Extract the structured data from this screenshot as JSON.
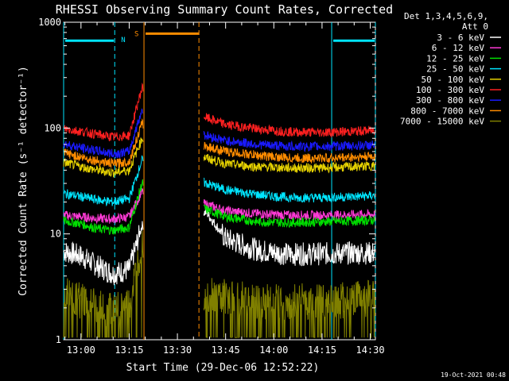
{
  "chart_data": {
    "type": "line",
    "title": "RHESSI Observing Summary Count Rates, Corrected",
    "xlabel": "Start Time (29-Dec-06 12:52:22)",
    "ylabel": "Corrected Count Rate (s⁻¹ detector⁻¹)",
    "yscale": "log",
    "ylim": [
      1,
      1000
    ],
    "xlim_minutes": [
      -5.4,
      91.6
    ],
    "x_ticks": [
      {
        "label": "13:00",
        "minute": 0
      },
      {
        "label": "13:15",
        "minute": 15
      },
      {
        "label": "13:30",
        "minute": 30
      },
      {
        "label": "13:45",
        "minute": 45
      },
      {
        "label": "14:00",
        "minute": 60
      },
      {
        "label": "14:15",
        "minute": 75
      },
      {
        "label": "14:30",
        "minute": 90
      }
    ],
    "y_ticks": [
      {
        "label": "1",
        "value": 1
      },
      {
        "label": "10",
        "value": 10
      },
      {
        "label": "100",
        "value": 100
      },
      {
        "label": "1000",
        "value": 1000
      }
    ],
    "legend_header": [
      "Det 1,3,4,5,6,9,",
      "Att 0"
    ],
    "legend_position": "right",
    "timestamp": "19-Oct-2021 00:48",
    "markers": [
      {
        "label": "N",
        "color": "#00e5ff"
      },
      {
        "label": "S",
        "color": "#ff8c00"
      }
    ],
    "intervals": {
      "night": [
        [
          -5.4,
          10.5
        ],
        [
          78.0,
          91.6
        ]
      ],
      "saa": [
        [
          19.6,
          36.7
        ]
      ],
      "data_segments": [
        [
          -5.4,
          19.4
        ],
        [
          38.2,
          91.6
        ]
      ],
      "night_level": 670,
      "saa_level": 780
    },
    "series": [
      {
        "name": "3 - 6 keV",
        "color": "#ffffff",
        "values": [
          6.8,
          6.2,
          5.0,
          4.2,
          4.6,
          12.0,
          16.0,
          9.0,
          7.0,
          6.4,
          6.5,
          6.6,
          6.6
        ]
      },
      {
        "name": "6 - 12 keV",
        "color": "#ff3ad6",
        "values": [
          15.0,
          14.5,
          14.0,
          13.8,
          14.5,
          25.0,
          19.0,
          16.5,
          15.5,
          15.0,
          15.0,
          15.2,
          15.3
        ]
      },
      {
        "name": "12 - 25 keV",
        "color": "#00e000",
        "values": [
          13.2,
          12.5,
          11.2,
          10.8,
          11.5,
          30.0,
          17.0,
          14.5,
          13.0,
          12.8,
          13.0,
          13.3,
          13.5
        ]
      },
      {
        "name": "25 - 50 keV",
        "color": "#00e5ff",
        "values": [
          24.0,
          22.5,
          21.0,
          20.0,
          21.5,
          50.0,
          30.0,
          26.0,
          23.5,
          22.0,
          22.0,
          22.5,
          23.0
        ]
      },
      {
        "name": "50 - 100 keV",
        "color": "#e6d200",
        "values": [
          47.0,
          43.0,
          40.0,
          38.0,
          40.0,
          80.0,
          52.0,
          46.0,
          43.0,
          42.0,
          42.0,
          43.0,
          44.0
        ]
      },
      {
        "name": "100 - 300 keV",
        "color": "#ff2020",
        "values": [
          98.0,
          93.0,
          87.0,
          82.0,
          85.0,
          240.0,
          125.0,
          108.0,
          98.0,
          92.0,
          91.0,
          93.0,
          95.0
        ]
      },
      {
        "name": "300 - 800 keV",
        "color": "#1a1aff",
        "values": [
          71.0,
          65.0,
          61.0,
          57.0,
          60.0,
          150.0,
          85.0,
          76.0,
          70.0,
          67.0,
          67.0,
          68.0,
          69.0
        ]
      },
      {
        "name": "800 - 7000 keV",
        "color": "#ff8c00",
        "values": [
          58.0,
          53.0,
          49.0,
          46.0,
          48.0,
          110.0,
          67.0,
          60.0,
          55.0,
          52.0,
          52.0,
          53.0,
          54.0
        ]
      },
      {
        "name": "7000 - 15000 keV",
        "color": "#808000",
        "values": [
          2.7,
          2.3,
          2.0,
          1.9,
          2.0,
          8.0,
          2.6,
          2.5,
          2.3,
          2.3,
          2.3,
          2.4,
          2.5
        ]
      }
    ],
    "x_minutes": [
      -5,
      0,
      5,
      10,
      15,
      19,
      39,
      45,
      55,
      65,
      75,
      85,
      91
    ]
  }
}
